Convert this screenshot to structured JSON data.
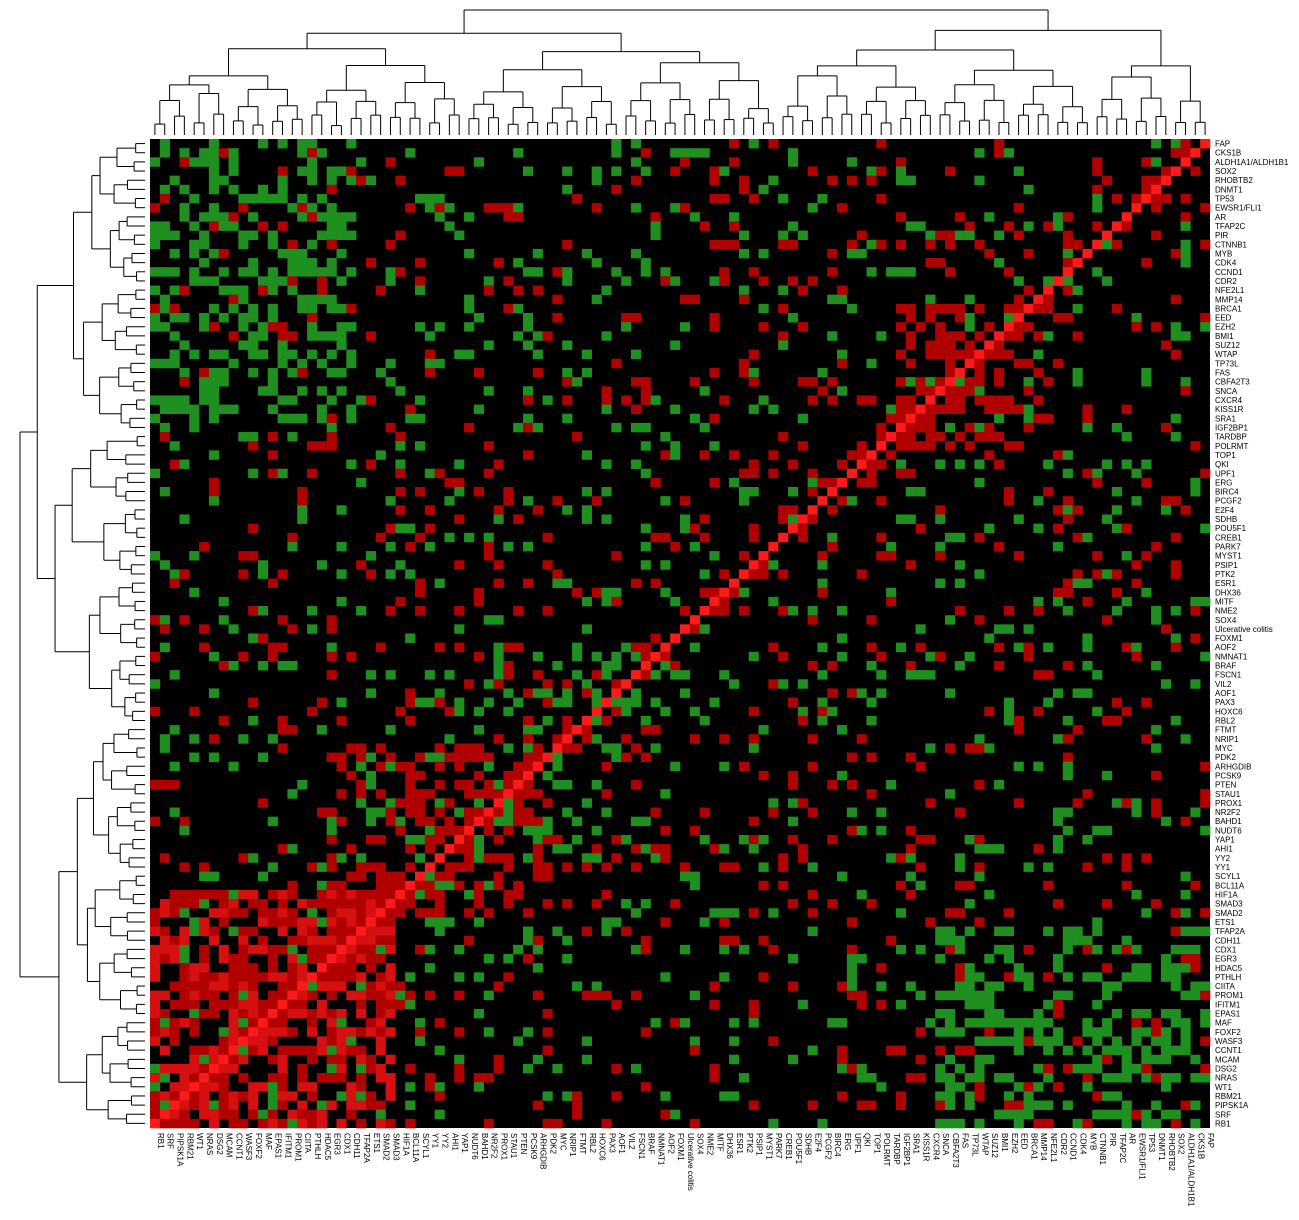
{
  "chart_data": {
    "type": "heatmap",
    "title": "",
    "row_labels": [
      "FAP",
      "CKS1B",
      "ALDH1A1/ALDH1B1",
      "SOX2",
      "RHOBTB2",
      "DNMT1",
      "TP53",
      "EWSR1/FLI1",
      "AR",
      "TFAP2C",
      "PIR",
      "CTNNB1",
      "MYB",
      "CDK4",
      "CCND1",
      "CDR2",
      "NFE2L1",
      "MMP14",
      "BRCA1",
      "EED",
      "EZH2",
      "BMI1",
      "SUZ12",
      "WTAP",
      "TP73L",
      "FAS",
      "CBFA2T3",
      "SNCA",
      "CXCR4",
      "KISS1R",
      "SRA1",
      "IGF2BP1",
      "TARDBP",
      "POLRMT",
      "TOP1",
      "QKI",
      "UPF1",
      "ERG",
      "BIRC4",
      "PCGF2",
      "E2F4",
      "SDHB",
      "POU5F1",
      "CREB1",
      "PARK7",
      "MYST1",
      "PSIP1",
      "PTK2",
      "ESR1",
      "DHX36",
      "MITF",
      "NME2",
      "SOX4",
      "Ulcerative colitis",
      "FOXM1",
      "AOF2",
      "NMNAT1",
      "BRAF",
      "FSCN1",
      "VIL2",
      "AOF1",
      "PAX3",
      "HOXC6",
      "RBL2",
      "FTMT",
      "NRIP1",
      "MYC",
      "PDK2",
      "ARHGDIB",
      "PCSK9",
      "PTEN",
      "STAU1",
      "PROX1",
      "NR2F2",
      "BAHD1",
      "NUDT6",
      "YAP1",
      "AHI1",
      "YY2",
      "YY1",
      "SCYL1",
      "BCL11A",
      "HIF1A",
      "SMAD3",
      "SMAD2",
      "ETS1",
      "TFAP2A",
      "CDH11",
      "CDX1",
      "EGR3",
      "HDAC5",
      "PTHLH",
      "CIITA",
      "PROM1",
      "IFITM1",
      "EPAS1",
      "MAF",
      "FOXF2",
      "WASF3",
      "CCNT1",
      "MCAM",
      "DSG2",
      "NRAS",
      "WT1",
      "RBM21",
      "PIPSK1A",
      "SRF",
      "RB1"
    ],
    "col_labels": [
      "RB1",
      "SRF",
      "PIPSK1A",
      "RBM21",
      "WT1",
      "NRAS",
      "DSG2",
      "MCAM",
      "CCNT1",
      "WASF3",
      "FOXF2",
      "MAF",
      "EPAS1",
      "IFITM1",
      "PROM1",
      "CIITA",
      "PTHLH",
      "HDAC5",
      "EGR3",
      "CDX1",
      "CDH11",
      "TFAP2A",
      "ETS1",
      "SMAD2",
      "SMAD3",
      "HIF1A",
      "BCL11A",
      "SCYL1",
      "YY1",
      "YY2",
      "AHI1",
      "YAP1",
      "NUDT6",
      "BAHD1",
      "NR2F2",
      "PROX1",
      "STAU1",
      "PTEN",
      "PCSK9",
      "ARHGDIB",
      "PDK2",
      "MYC",
      "NRIP1",
      "FTMT",
      "RBL2",
      "HOXC6",
      "PAX3",
      "AOF1",
      "VIL2",
      "FSCN1",
      "BRAF",
      "NMNAT1",
      "AOF2",
      "FOXM1",
      "Ulcerative colitis",
      "SOX4",
      "NME2",
      "MITF",
      "DHX36",
      "ESR1",
      "PTK2",
      "PSIP1",
      "MYST1",
      "PARK7",
      "CREB1",
      "POU5F1",
      "SDHB",
      "E2F4",
      "PCGF2",
      "BIRC4",
      "ERG",
      "UPF1",
      "QKI",
      "TOP1",
      "POLRMT",
      "TARDBP",
      "IGF2BP1",
      "SRA1",
      "KISS1R",
      "CXCR4",
      "SNCA",
      "CBFA2T3",
      "FAS",
      "TP73L",
      "WTAP",
      "SUZ12",
      "BMI1",
      "EZH2",
      "EED",
      "BRCA1",
      "MMP14",
      "NFE2L1",
      "CDR2",
      "CCND1",
      "CDK4",
      "MYB",
      "CTNNB1",
      "PIR",
      "TFAP2C",
      "AR",
      "EWSR1/FLI1",
      "TP53",
      "DNMT1",
      "RHOBTB2",
      "SOX2",
      "ALDH1A1/ALDH1B1",
      "CKS1B",
      "FAP"
    ],
    "value_scale": {
      "negative": "#1f8f1f",
      "zero": "#000000",
      "positive": "#b00000",
      "diagonal": "#ff1a1a"
    },
    "diagonal_value": 1,
    "row_dendrogram": "left",
    "col_dendrogram": "top",
    "legend": "none",
    "grid": false
  }
}
